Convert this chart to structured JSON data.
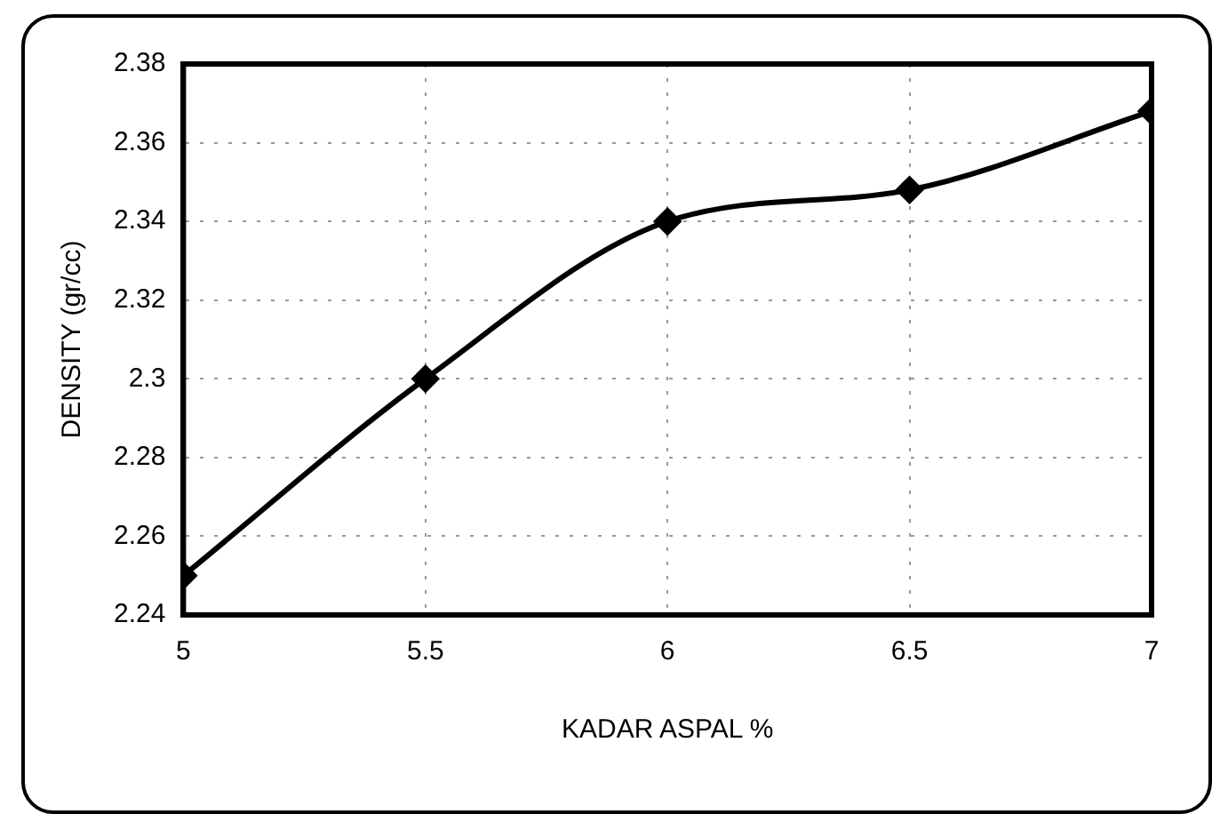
{
  "chart_data": {
    "type": "line",
    "xlabel": "KADAR ASPAL %",
    "ylabel": "DENSITY (gr/cc)",
    "x": [
      5,
      5.5,
      6,
      6.5,
      7
    ],
    "series": [
      {
        "color": "#000000",
        "values": [
          2.25,
          2.3,
          2.34,
          2.348,
          2.368
        ]
      }
    ],
    "xlim": [
      5,
      7
    ],
    "xticks": [
      5,
      5.5,
      6,
      6.5,
      7
    ],
    "ylim": [
      2.24,
      2.38
    ],
    "yticks": [
      2.24,
      2.26,
      2.28,
      2.3,
      2.32,
      2.34,
      2.36,
      2.38
    ],
    "grid": true,
    "marker": "diamond",
    "line_style": "solid"
  }
}
